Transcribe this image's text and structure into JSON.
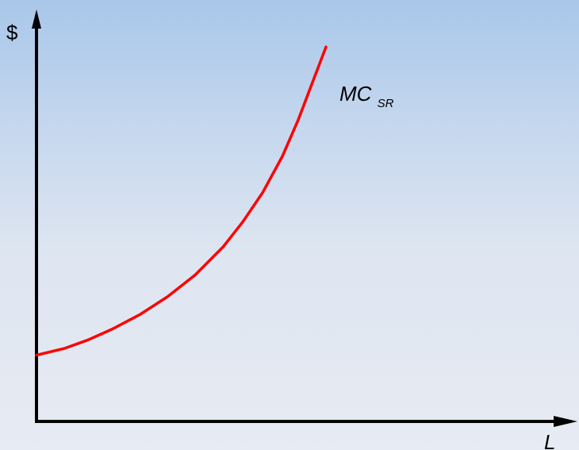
{
  "chart_data": {
    "type": "line",
    "ylabel": "$",
    "xlabel": "L",
    "grid": false,
    "series": [
      {
        "name": "MC_SR",
        "label_main": "MC",
        "label_sub": "SR",
        "color": "#ff0000",
        "x": [
          0,
          3.5,
          6.5,
          9.5,
          13,
          16.5,
          20,
          23.5,
          26,
          28.5,
          31,
          33,
          35,
          36.5
        ],
        "y": [
          10,
          11,
          12.3,
          13.9,
          16.1,
          18.8,
          22.1,
          26.3,
          30.1,
          34.5,
          40.0,
          45.5,
          51.8,
          56.5
        ]
      }
    ],
    "xlim": [
      0,
      57
    ],
    "ylim": [
      0,
      60
    ]
  },
  "colors": {
    "axis": "#000000",
    "curve": "#ff0000",
    "background_top": "#a9c7ea",
    "background_bottom": "#e7ebf3"
  }
}
